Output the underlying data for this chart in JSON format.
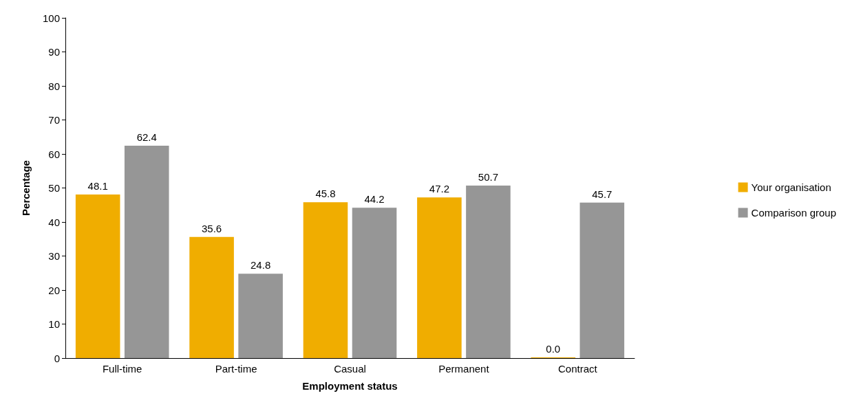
{
  "chart_data": {
    "type": "bar",
    "xlabel": "Employment status",
    "ylabel": "Percentage",
    "categories": [
      "Full-time",
      "Part-time",
      "Casual",
      "Permanent",
      "Contract"
    ],
    "series": [
      {
        "name": "Your organisation",
        "color": "#f0ad00",
        "values": [
          48.1,
          35.6,
          45.8,
          47.2,
          0
        ],
        "value_labels": [
          "48.1",
          "35.6",
          "45.8",
          "47.2",
          "0.0"
        ]
      },
      {
        "name": "Comparison group",
        "color": "#969696",
        "values": [
          62.4,
          24.8,
          44.2,
          50.7,
          45.7
        ],
        "value_labels": [
          "62.4",
          "24.8",
          "44.2",
          "50.7",
          "45.7"
        ]
      }
    ],
    "ylim": [
      0,
      100
    ],
    "yticks": [
      0,
      10,
      20,
      30,
      40,
      50,
      60,
      70,
      80,
      90,
      100
    ],
    "grid": false,
    "legend": "right"
  }
}
